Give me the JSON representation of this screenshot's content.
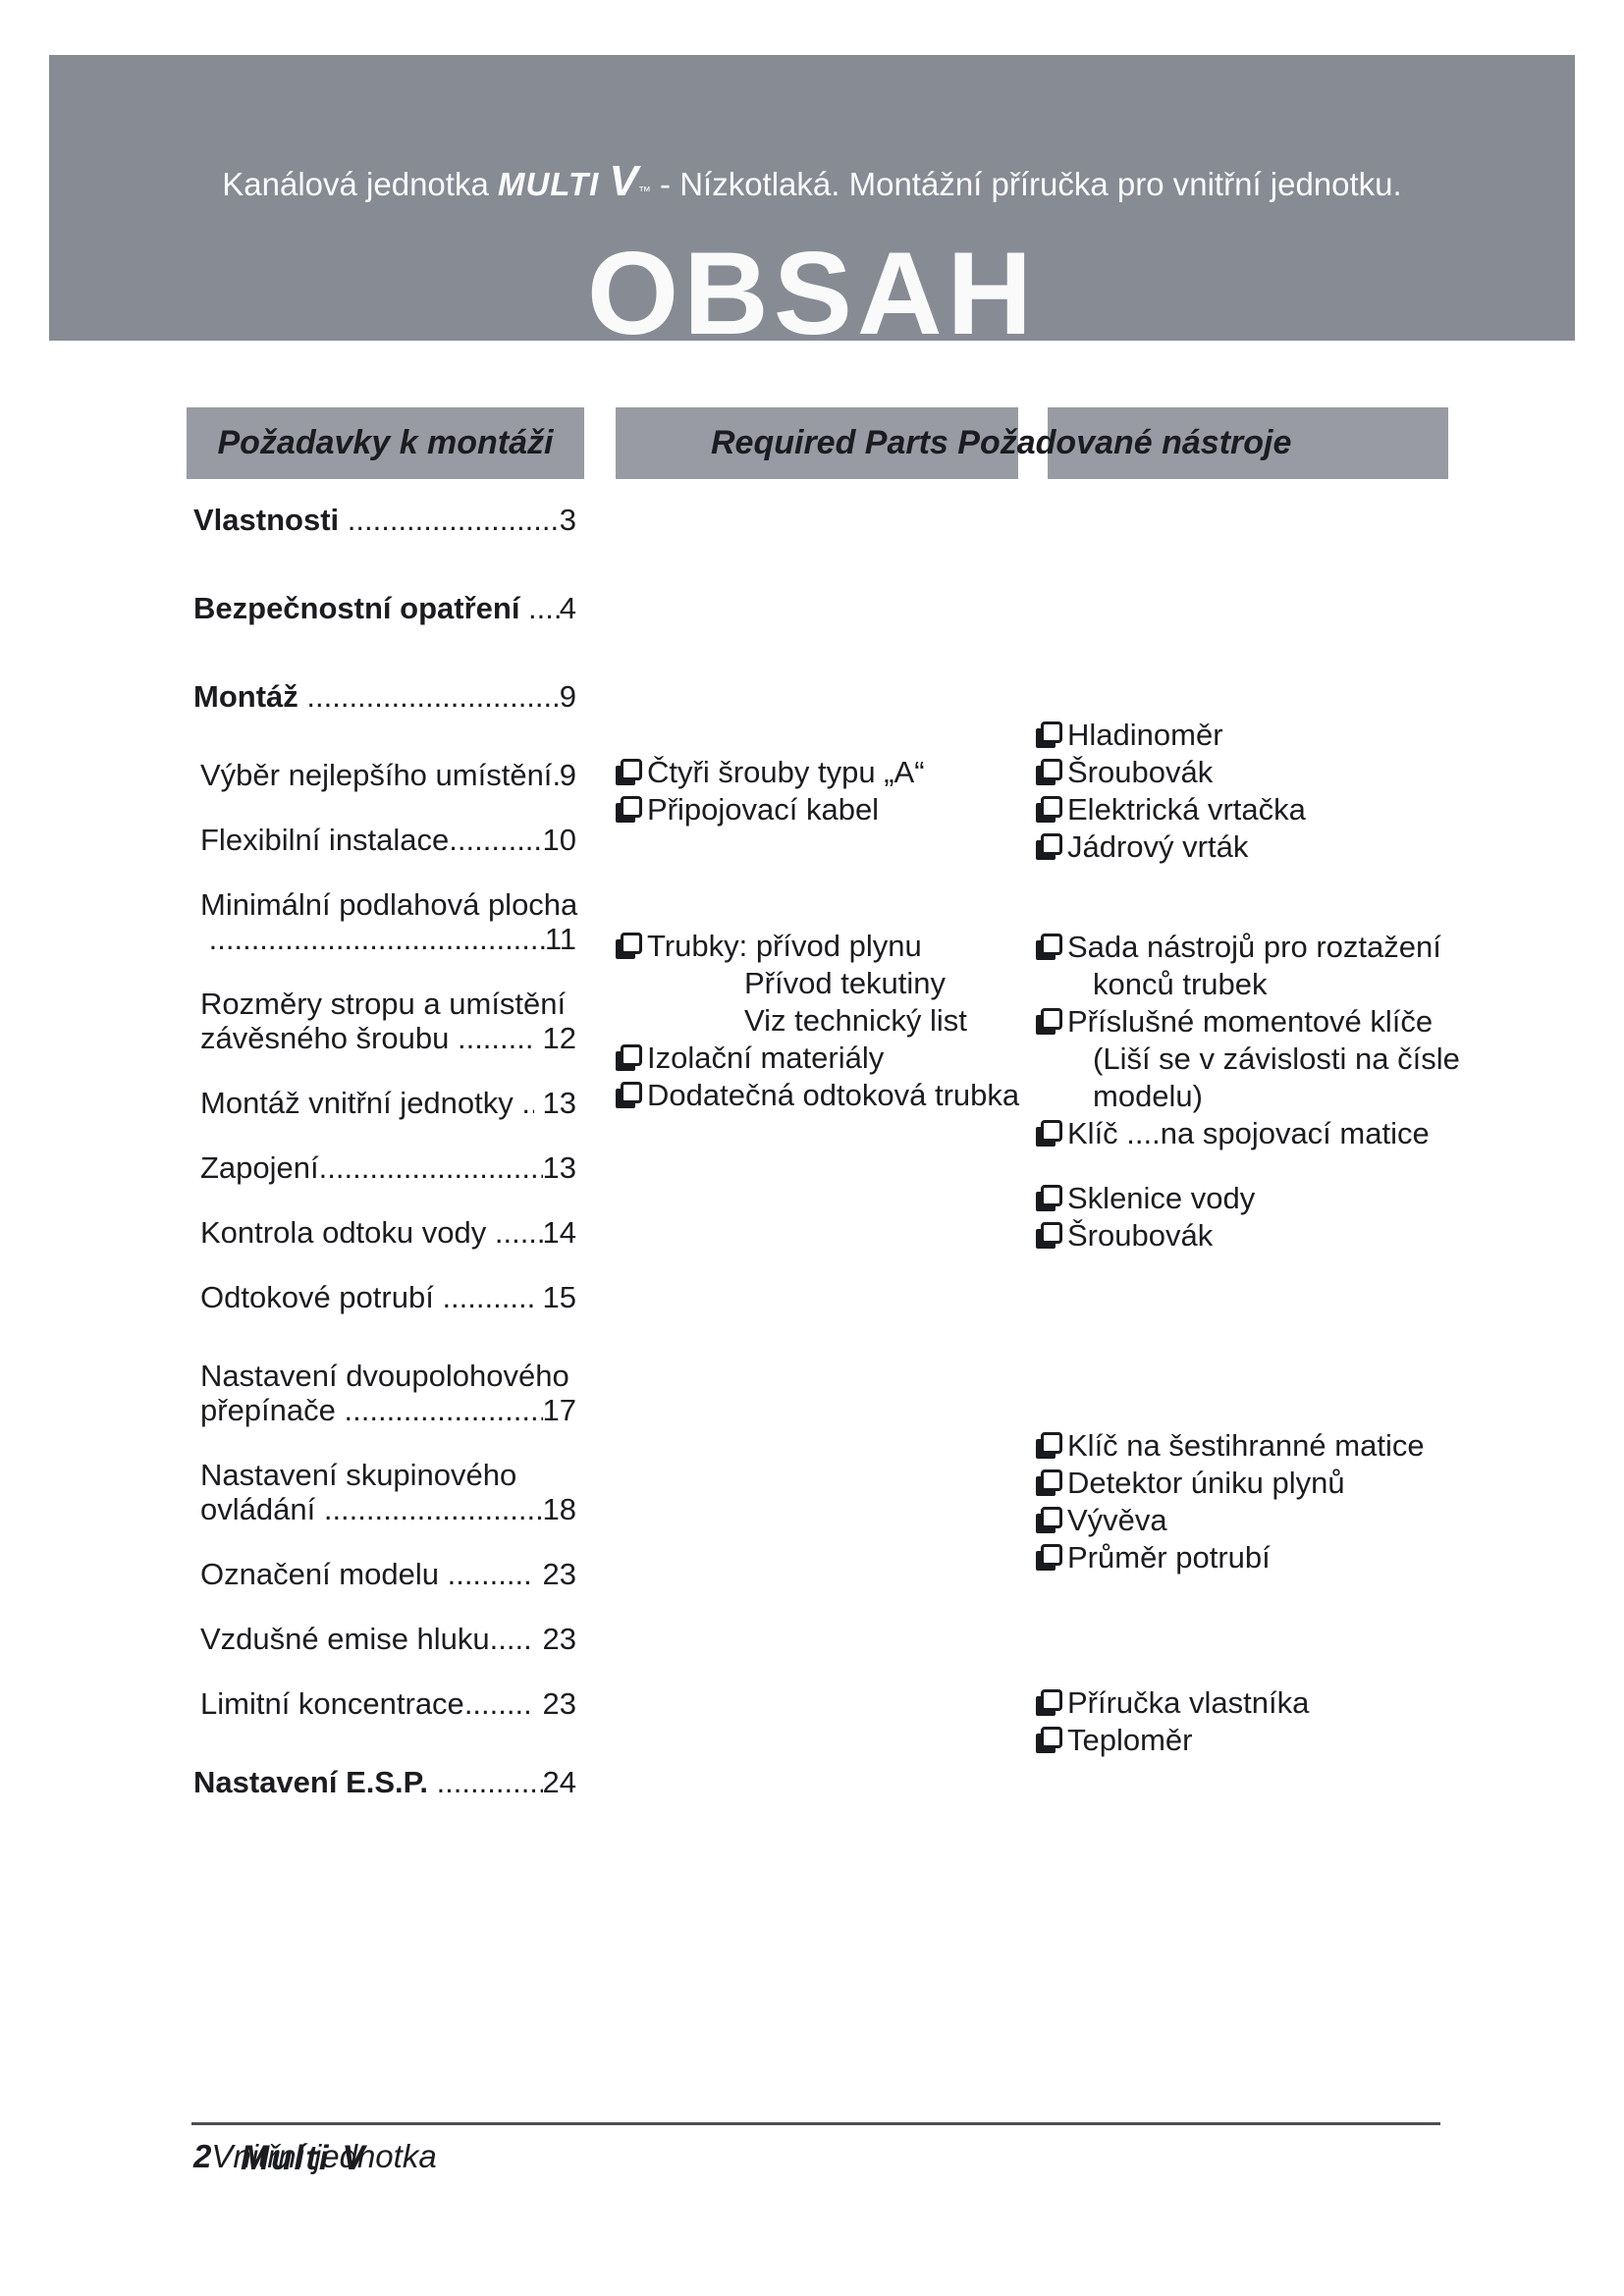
{
  "colors": {
    "banner_bg": "#878b94",
    "bar_bg": "#989ba3",
    "text": "#1b1c20"
  },
  "banner": {
    "title_prefix": "Kanálová jednotka ",
    "brand": "MULTI ",
    "brand_v": "V",
    "brand_mark": "™",
    "title_suffix": " - Nízkotlaká. Montážní příručka pro vnitřní jednotku.",
    "heading": "OBSAH"
  },
  "section_headers": {
    "left": "Požadavky k montáži",
    "combined": "Required Parts Požadované nástroje"
  },
  "leader": "....................................................................",
  "toc": [
    {
      "bold": true,
      "label": "Vlastnosti ",
      "page": "3"
    },
    {
      "bold": true,
      "space": "c",
      "label": "Bezpečnostní opatření ",
      "page": "4"
    },
    {
      "bold": true,
      "space": "c",
      "label": "Montáž ",
      "page": "9"
    },
    {
      "indent": true,
      "space": "b",
      "label": "Výběr nejlepšího umístění",
      "page": "9"
    },
    {
      "indent": true,
      "space": "a",
      "label": "Flexibilní instalace",
      "page": "10"
    },
    {
      "indent": true,
      "space": "a",
      "label": "Minimální podlahová plocha",
      "line2_label": " ",
      "line2_page": "11"
    },
    {
      "indent": true,
      "space": "a",
      "label": "Rozměry stropu a umístění",
      "line2_label": "závěsného šroubu ",
      "line2_page": " 12"
    },
    {
      "indent": true,
      "space": "a",
      "label": "Montáž vnitřní jednotky ",
      "page": " 13"
    },
    {
      "indent": true,
      "space": "a",
      "label": "Zapojení",
      "page": "13"
    },
    {
      "indent": true,
      "space": "a",
      "label": "Kontrola odtoku vody ",
      "page": "14"
    },
    {
      "indent": true,
      "space": "a",
      "label": "Odtokové potrubí ",
      "page": " 15"
    },
    {
      "indent": true,
      "space": "b",
      "label": "Nastavení dvoupolohového",
      "line2_label": "přepínače ",
      "line2_page": "17"
    },
    {
      "indent": true,
      "space": "a",
      "label": "Nastavení skupinového",
      "line2_label": "ovládání ",
      "line2_page": "18"
    },
    {
      "indent": true,
      "space": "a",
      "label": "Označení modelu ",
      "page": " 23"
    },
    {
      "indent": true,
      "space": "a",
      "label": "Vzdušné emise hluku",
      "page": " 23"
    },
    {
      "indent": true,
      "space": "a",
      "label": "Limitní koncentrace",
      "page": " 23"
    },
    {
      "bold": true,
      "space": "b",
      "label": "Nastavení E.S.P. ",
      "page": "24"
    }
  ],
  "required_parts": [
    {
      "box": true,
      "text": "Čtyři šrouby typu „A“"
    },
    {
      "box": true,
      "text": "Připojovací kabel"
    },
    {
      "box": true,
      "space": "f",
      "text": "Trubky: přívod plynu"
    },
    {
      "box": false,
      "indent": true,
      "text": "Přívod tekutiny"
    },
    {
      "box": false,
      "indent": true,
      "text": "Viz technický list"
    },
    {
      "box": true,
      "text": "Izolační materiály"
    },
    {
      "box": true,
      "text": "Dodatečná odtoková trubka"
    }
  ],
  "required_tools": [
    {
      "box": true,
      "text": "Hladinoměr"
    },
    {
      "box": true,
      "text": "Šroubovák"
    },
    {
      "box": true,
      "text": "Elektrická vrtačka"
    },
    {
      "box": true,
      "text": "Jádrový vrták"
    },
    {
      "box": true,
      "space": "e",
      "text": "Sada nástrojů pro roztažení"
    },
    {
      "box": false,
      "indent": true,
      "text": "konců trubek"
    },
    {
      "box": true,
      "text": "Příslušné momentové klíče"
    },
    {
      "box": false,
      "indent": true,
      "text": "(Liší se v závislosti na čísle"
    },
    {
      "box": false,
      "indent": true,
      "text": "modelu)"
    },
    {
      "box": true,
      "text": "Klíč ....na spojovací matice"
    },
    {
      "box": true,
      "space": "d",
      "text": "Sklenice vody"
    },
    {
      "box": true,
      "text": "Šroubovák"
    },
    {
      "box": true,
      "space": "h",
      "text": "Klíč na šestihranné matice"
    },
    {
      "box": true,
      "text": "Detektor úniku plynů"
    },
    {
      "box": true,
      "text": "Vývěva"
    },
    {
      "box": true,
      "text": "Průměr potrubí"
    },
    {
      "box": true,
      "space": "g",
      "text": "Příručka vlastníka"
    },
    {
      "box": true,
      "text": "Teploměr"
    }
  ],
  "footer": {
    "page_number": "2",
    "label": "Vnitřní jednotka",
    "overlay": "Multi V"
  }
}
